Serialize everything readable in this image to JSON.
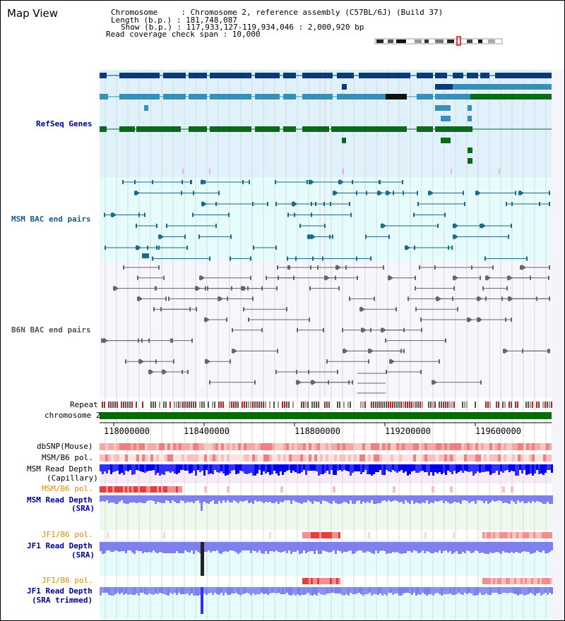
{
  "view": {
    "title": "Map View"
  },
  "header": {
    "chromosome_line": "Chromosome     : Chromosome 2, reference assembly (C57BL/6J) (Build 37)",
    "length_line": "Length (b.p.) : 181,748,087",
    "show_line": "Show (b.p.) : 117,933,127-119,934,046 : 2,000,920 bp",
    "span_line": "Read coverage check span : 10,000"
  },
  "tracks": {
    "refseq": "RefSeq Genes",
    "msm_bac": "MSM BAC end pairs",
    "b6n_bac": "B6N BAC end pairs",
    "repeat": "Repeat",
    "chromosome": "chromosome 2",
    "dbsnp": "dbSNP(Mouse)",
    "msm_b6_pol_1": "MSM/B6 pol.",
    "msm_depth_cap_1": "MSM Read Depth",
    "msm_depth_cap_2": "(Capillary)",
    "msm_b6_pol_2": "MSM/B6 pol.",
    "msm_depth_sra_1": "MSM Read Depth",
    "msm_depth_sra_2": "(SRA)",
    "jf1_b6_pol_1": "JF1/B6 pol.",
    "jf1_depth_sra_1": "JF1 Read Depth",
    "jf1_depth_sra_2": "(SRA)",
    "jf1_b6_pol_2": "JF1/B6 pol.",
    "jf1_depth_trim_1": "JF1 Read Depth",
    "jf1_depth_trim_2": "(SRA trimmed)"
  },
  "axis": {
    "ticks": [
      "118000000",
      "118400000",
      "118800000",
      "119200000",
      "119600000"
    ]
  },
  "colors": {
    "refseq_dark": "#0a3a7a",
    "refseq_mid": "#3a8fb7",
    "refseq_green": "#0a6a1a",
    "msm_bac": "#1a6a8a",
    "b6n_bac": "#666666",
    "chromosome": "#0a6a0a",
    "depth_blue": "#0000ee",
    "depth_light": "#7f7fee",
    "label_blue": "#000099",
    "label_orange": "#e09000"
  }
}
